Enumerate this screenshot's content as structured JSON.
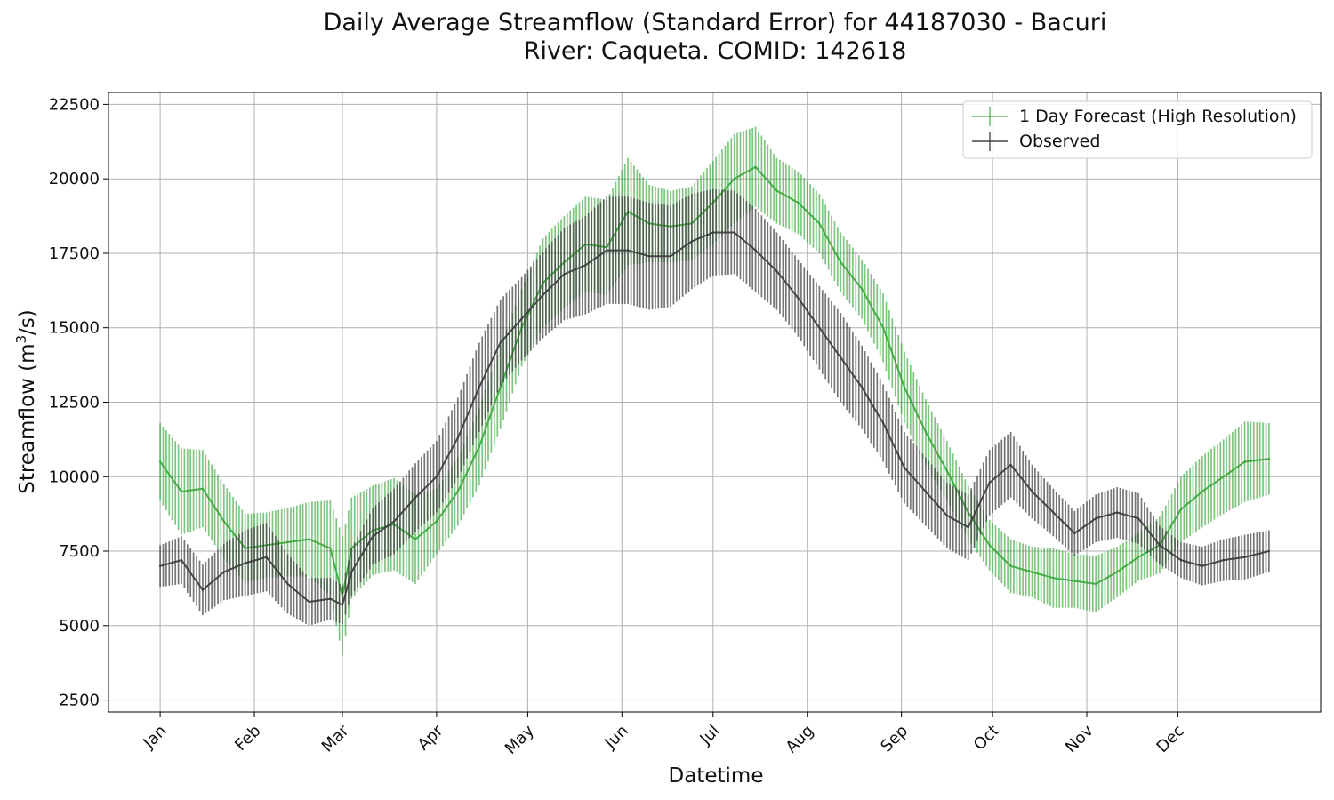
{
  "chart_data": {
    "type": "line",
    "title": "Daily Average Streamflow (Standard Error) for 44187030 - Bacuri",
    "subtitle": "River: Caqueta. COMID: 142618",
    "xlabel": "Datetime",
    "ylabel": "Streamflow (m³/s)",
    "ylabel_main": "Streamflow (m",
    "ylabel_sup": "3",
    "ylabel_end": "/s)",
    "ylim": [
      2100,
      22900
    ],
    "yticks": [
      2500,
      5000,
      7500,
      10000,
      12500,
      15000,
      17500,
      20000,
      22500
    ],
    "x_months": [
      "Jan",
      "Feb",
      "Mar",
      "Apr",
      "May",
      "Jun",
      "Jul",
      "Aug",
      "Sep",
      "Oct",
      "Nov",
      "Dec"
    ],
    "x_month_start_day": [
      1,
      32,
      61,
      92,
      122,
      153,
      183,
      214,
      245,
      275,
      306,
      336
    ],
    "x_day_range": [
      -16,
      383
    ],
    "grid": true,
    "legend_position": "top-right",
    "series": [
      {
        "name": "1 Day Forecast (High Resolution)",
        "color": "#3aa63a",
        "x": [
          1,
          8,
          15,
          22,
          29,
          36,
          43,
          50,
          57,
          61,
          64,
          71,
          78,
          85,
          92,
          99,
          106,
          113,
          120,
          127,
          134,
          141,
          148,
          155,
          162,
          169,
          176,
          183,
          190,
          197,
          204,
          211,
          218,
          225,
          232,
          239,
          246,
          253,
          260,
          267,
          274,
          281,
          288,
          295,
          302,
          309,
          316,
          323,
          330,
          337,
          344,
          351,
          358,
          366
        ],
        "y": [
          10500,
          9500,
          9600,
          8500,
          7600,
          7700,
          7800,
          7900,
          7600,
          6000,
          7600,
          8200,
          8400,
          7900,
          8500,
          9500,
          11000,
          13000,
          15000,
          16500,
          17200,
          17800,
          17700,
          18900,
          18500,
          18400,
          18500,
          19200,
          20000,
          20400,
          19600,
          19200,
          18500,
          17200,
          16300,
          15000,
          13000,
          11500,
          10200,
          8800,
          7700,
          7000,
          6800,
          6600,
          6500,
          6400,
          6800,
          7300,
          7700,
          8900,
          9500,
          10000,
          10500,
          10600
        ],
        "err": [
          1300,
          1450,
          1300,
          1250,
          1150,
          1100,
          1150,
          1250,
          1600,
          2000,
          1700,
          1500,
          1550,
          1500,
          1100,
          1150,
          1300,
          1400,
          1300,
          1500,
          1550,
          1600,
          1600,
          1800,
          1300,
          1200,
          1250,
          1400,
          1500,
          1350,
          1100,
          1050,
          1000,
          1000,
          1000,
          1150,
          1200,
          1100,
          1000,
          900,
          850,
          900,
          850,
          1000,
          900,
          950,
          850,
          800,
          950,
          1100,
          1200,
          1250,
          1350,
          1200
        ]
      },
      {
        "name": "Observed",
        "color": "#3a3a3a",
        "x": [
          1,
          8,
          15,
          22,
          29,
          36,
          43,
          50,
          57,
          61,
          64,
          71,
          78,
          85,
          92,
          99,
          106,
          113,
          120,
          127,
          134,
          141,
          148,
          155,
          162,
          169,
          176,
          183,
          190,
          197,
          204,
          211,
          218,
          225,
          232,
          239,
          246,
          253,
          260,
          267,
          274,
          281,
          288,
          295,
          302,
          309,
          316,
          323,
          330,
          337,
          344,
          351,
          358,
          366
        ],
        "y": [
          7000,
          7200,
          6200,
          6800,
          7100,
          7300,
          6400,
          5800,
          5900,
          5700,
          6800,
          8000,
          8500,
          9300,
          10000,
          11300,
          13000,
          14500,
          15300,
          16100,
          16800,
          17100,
          17600,
          17600,
          17400,
          17400,
          17900,
          18200,
          18200,
          17600,
          16900,
          16000,
          15000,
          14000,
          13000,
          11800,
          10300,
          9500,
          8700,
          8300,
          9800,
          10400,
          9500,
          8800,
          8100,
          8600,
          8800,
          8600,
          7700,
          7200,
          7000,
          7200,
          7300,
          7500
        ],
        "err": [
          700,
          800,
          850,
          950,
          1100,
          1150,
          1000,
          800,
          700,
          650,
          800,
          950,
          1100,
          1150,
          1200,
          1350,
          1500,
          1450,
          1400,
          1450,
          1550,
          1650,
          1800,
          1800,
          1800,
          1700,
          1600,
          1450,
          1400,
          1400,
          1300,
          1300,
          1400,
          1500,
          1400,
          1300,
          1200,
          1150,
          1100,
          1100,
          1100,
          1100,
          900,
          800,
          750,
          800,
          850,
          850,
          650,
          600,
          650,
          700,
          750,
          700
        ]
      }
    ]
  }
}
